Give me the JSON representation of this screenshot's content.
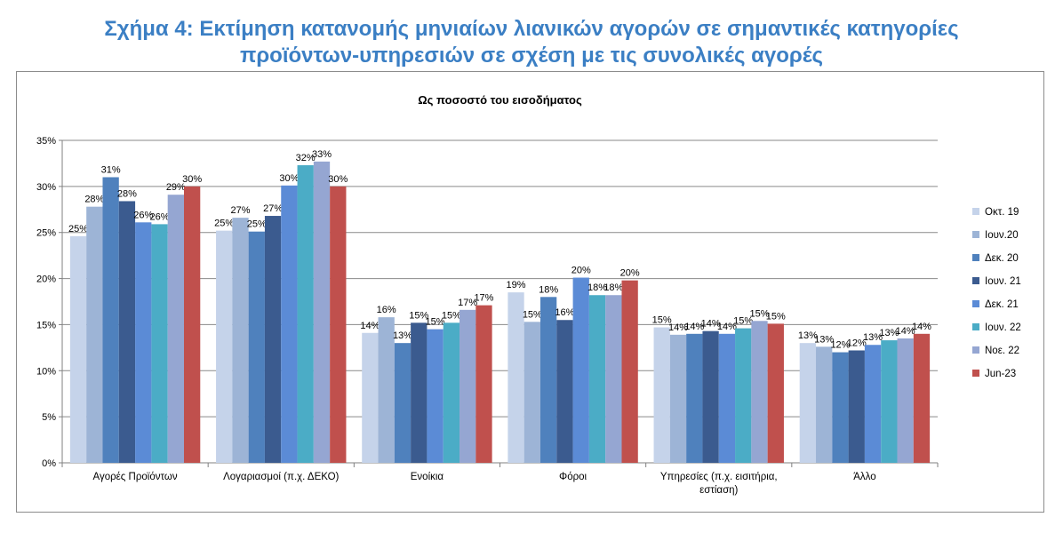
{
  "figure": {
    "title_line1": "Σχήμα 4: Εκτίμηση κατανομής μηνιαίων λιανικών αγορών σε σημαντικές κατηγορίες",
    "title_line2": "προϊόντων-υπηρεσιών σε σχέση με τις συνολικές αγορές"
  },
  "chart_data": {
    "type": "bar",
    "title": "Ως ποσοστό του εισοδήματος",
    "xlabel": "",
    "ylabel": "",
    "ylim": [
      0,
      35
    ],
    "yticks": [
      "0%",
      "5%",
      "10%",
      "15%",
      "20%",
      "25%",
      "30%",
      "35%"
    ],
    "grid": true,
    "legend_position": "right",
    "categories": [
      [
        "Αγορές Προϊόντων"
      ],
      [
        "Λογαριασμοί (π.χ. ΔΕΚΟ)"
      ],
      [
        "Ενοίκια"
      ],
      [
        "Φόροι"
      ],
      [
        "Υπηρεσίες (π.χ. εισιτήρια,",
        "εστίαση)"
      ],
      [
        "Άλλο"
      ]
    ],
    "series": [
      {
        "name": "Οκτ. 19",
        "color": "#c5d3ea",
        "values": [
          24.6,
          25.2,
          14.1,
          18.5,
          14.7,
          13.0
        ],
        "labels": [
          "25%",
          "25%",
          "14%",
          "19%",
          "15%",
          "13%"
        ]
      },
      {
        "name": "Ιουν.20",
        "color": "#9db4d6",
        "values": [
          27.8,
          26.6,
          15.8,
          15.3,
          13.9,
          12.6
        ],
        "labels": [
          "28%",
          "27%",
          "16%",
          "15%",
          "14%",
          "13%"
        ]
      },
      {
        "name": "Δεκ. 20",
        "color": "#4f81bd",
        "values": [
          31.0,
          25.1,
          13.0,
          18.0,
          14.0,
          12.0
        ],
        "labels": [
          "31%",
          "25%",
          "13%",
          "18%",
          "14%",
          "12%"
        ]
      },
      {
        "name": "Ιουν. 21",
        "color": "#3b5b8f",
        "values": [
          28.4,
          26.8,
          15.2,
          15.5,
          14.3,
          12.2
        ],
        "labels": [
          "28%",
          "27%",
          "15%",
          "16%",
          "14%",
          "12%"
        ]
      },
      {
        "name": "Δεκ. 21",
        "color": "#5b8bd6",
        "values": [
          26.1,
          30.1,
          14.5,
          20.1,
          14.0,
          12.8
        ],
        "labels": [
          "26%",
          "30%",
          "15%",
          "20%",
          "14%",
          "13%"
        ]
      },
      {
        "name": "Ιουν. 22",
        "color": "#4bacc6",
        "values": [
          25.9,
          32.3,
          15.2,
          18.2,
          14.6,
          13.3
        ],
        "labels": [
          "26%",
          "32%",
          "15%",
          "18%",
          "15%",
          "13%"
        ]
      },
      {
        "name": "Νοε. 22",
        "color": "#95a6d2",
        "values": [
          29.1,
          32.7,
          16.6,
          18.2,
          15.4,
          13.5
        ],
        "labels": [
          "29%",
          "33%",
          "17%",
          "18%",
          "15%",
          "14%"
        ]
      },
      {
        "name": "Jun-23",
        "color": "#c0504d",
        "values": [
          30.0,
          30.0,
          17.1,
          19.8,
          15.1,
          14.0
        ],
        "labels": [
          "30%",
          "30%",
          "17%",
          "20%",
          "15%",
          "14%"
        ]
      }
    ]
  }
}
